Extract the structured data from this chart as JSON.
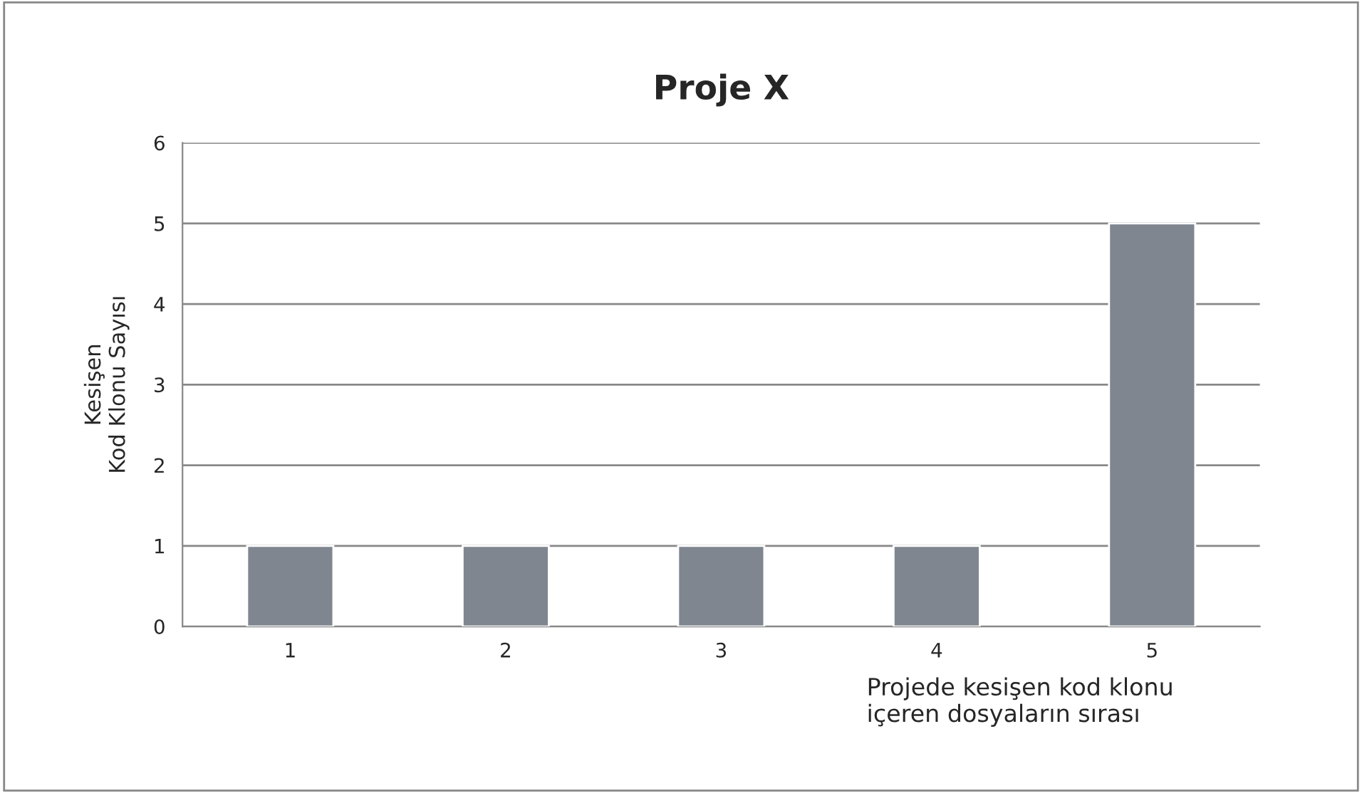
{
  "chart_data": {
    "type": "bar",
    "title": "Proje X",
    "xlabel": "Projede kesişen kod klonu\niçeren dosyaların sırası",
    "ylabel": "Kesişen\nKod Klonu Sayısı",
    "categories": [
      "1",
      "2",
      "3",
      "4",
      "5"
    ],
    "values": [
      1,
      1,
      1,
      1,
      5
    ],
    "color": "#7f868f",
    "ylim": [
      0,
      6
    ],
    "yticks": [
      0,
      1,
      2,
      3,
      4,
      5,
      6
    ],
    "grid": "y"
  }
}
